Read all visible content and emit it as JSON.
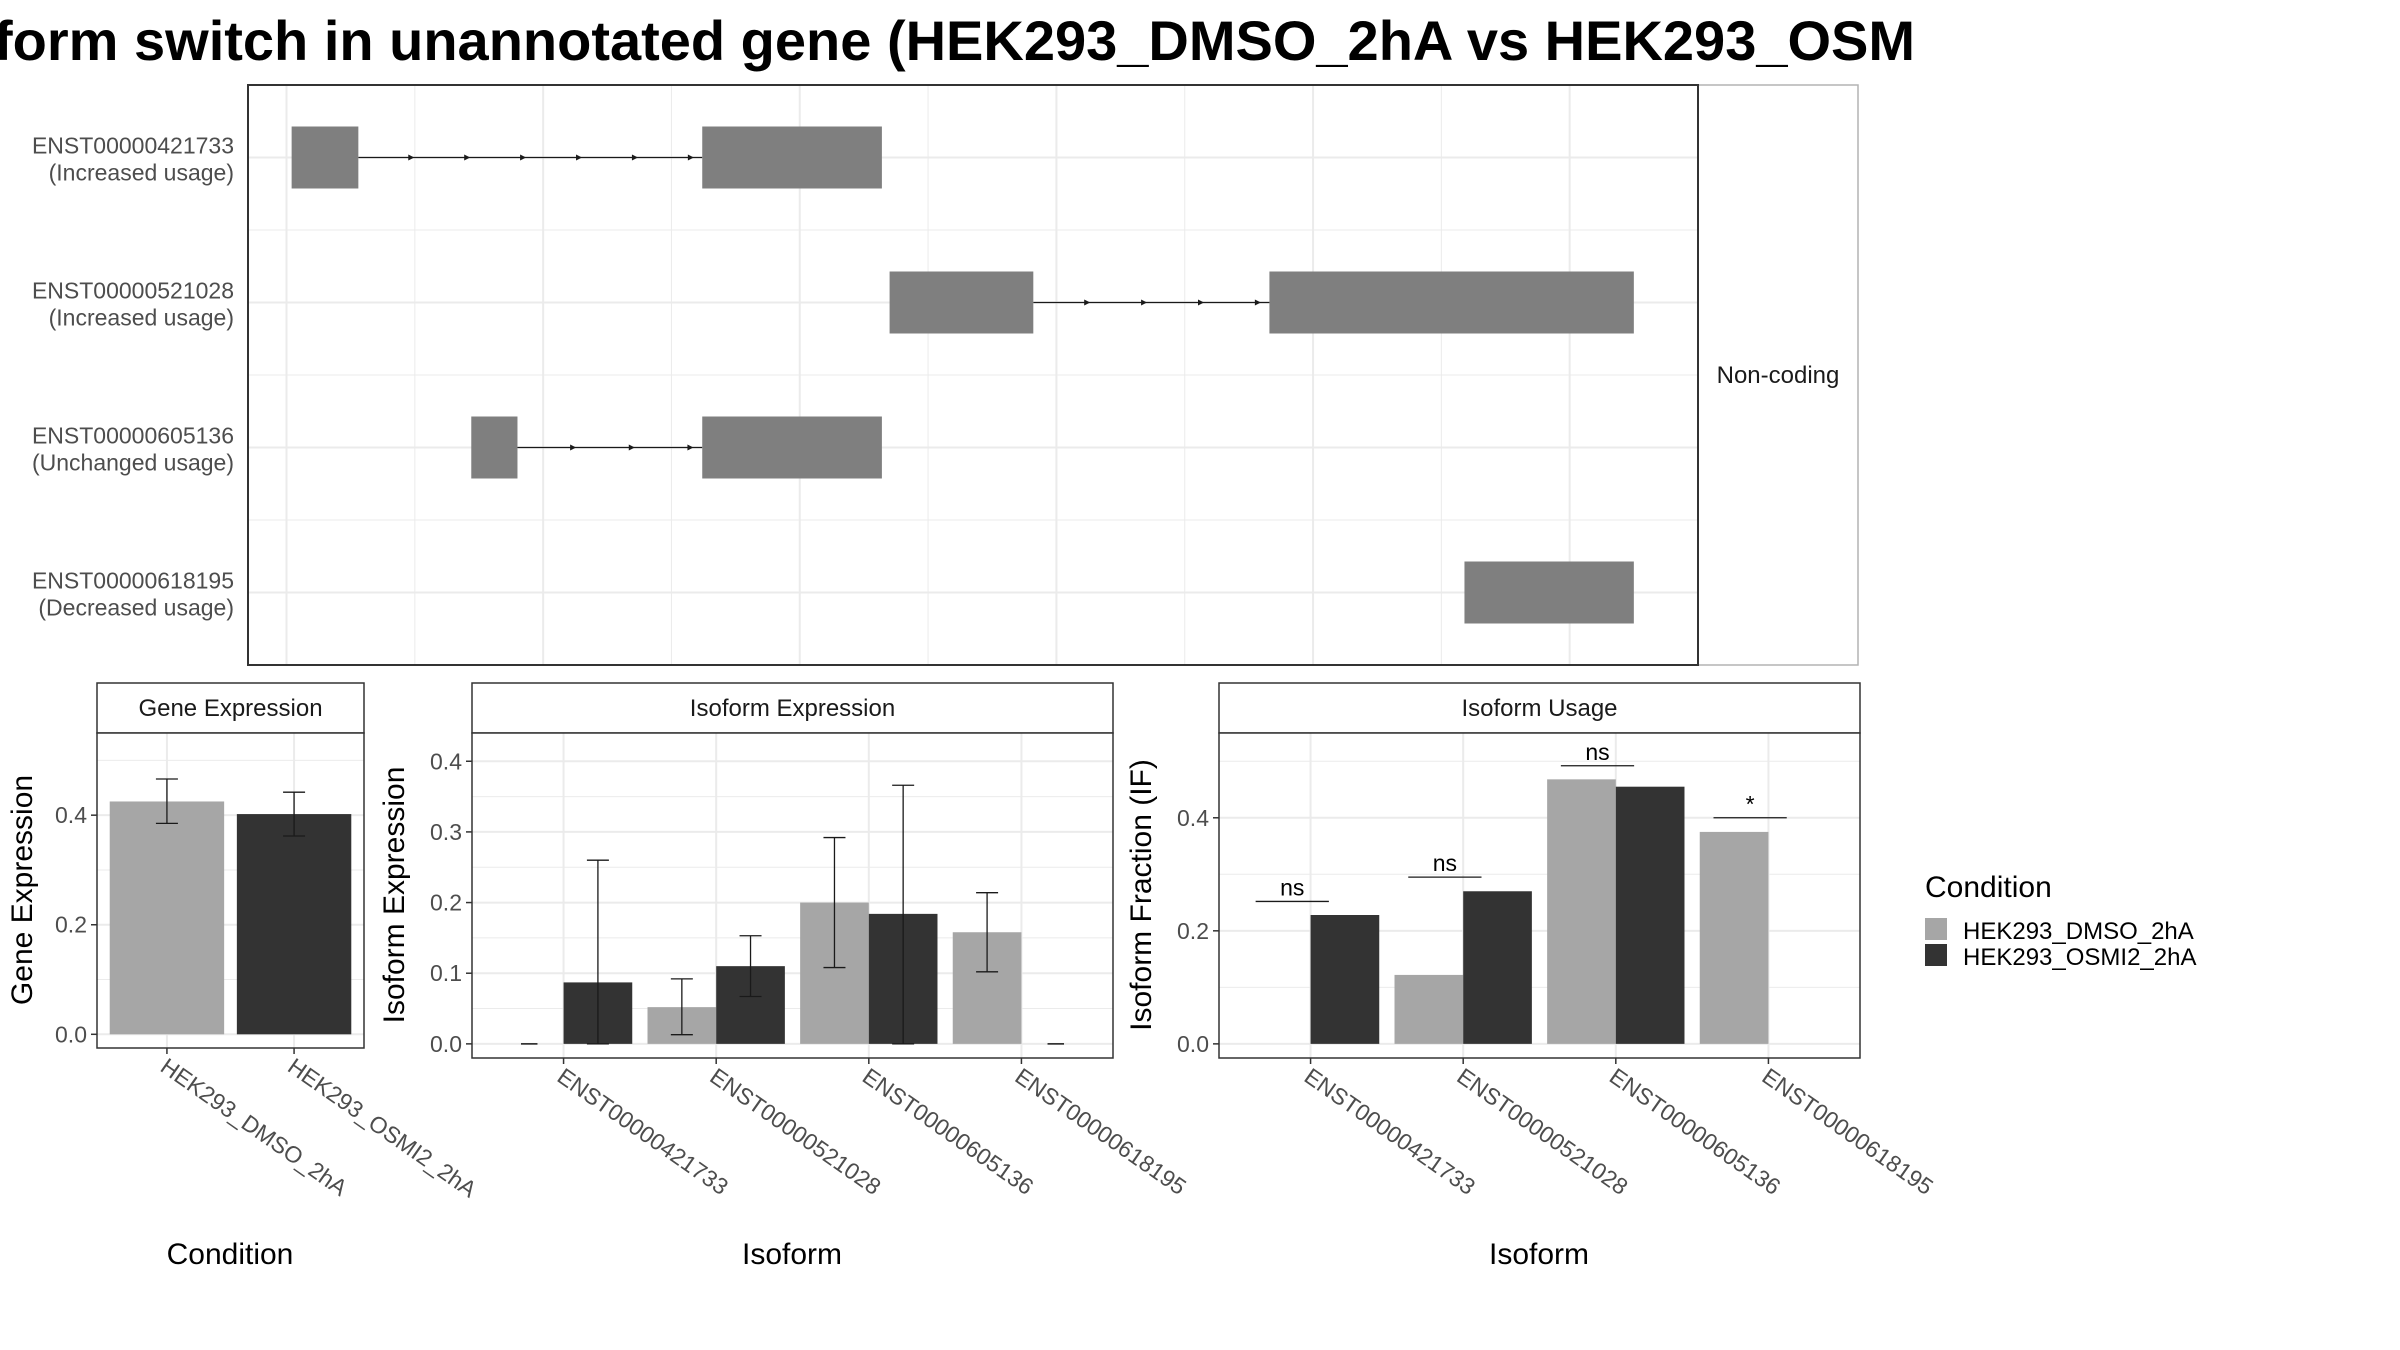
{
  "title": "form switch in unannotated gene (HEK293_DMSO_2hA vs HEK293_OSM",
  "colors": {
    "cond1": "#a6a6a6",
    "cond2": "#333333",
    "exon": "#7f7f7f",
    "grid": "#ebebeb",
    "panel_border": "#333333"
  },
  "chart_data": [
    {
      "id": "transcript_structure",
      "type": "gene_model",
      "strip_label": "Non-coding",
      "x_gridlines": [
        0,
        1,
        2,
        3,
        4,
        5
      ],
      "xlim": [
        -0.15,
        5.5
      ],
      "transcripts": [
        {
          "id": "ENST00000421733",
          "usage": "(Increased usage)",
          "exons": [
            [
              0.02,
              0.28
            ],
            [
              1.62,
              2.32
            ]
          ]
        },
        {
          "id": "ENST00000521028",
          "usage": "(Increased usage)",
          "exons": [
            [
              2.35,
              2.91
            ],
            [
              3.83,
              5.25
            ]
          ]
        },
        {
          "id": "ENST00000605136",
          "usage": "(Unchanged usage)",
          "exons": [
            [
              0.72,
              0.9
            ],
            [
              1.62,
              2.32
            ]
          ]
        },
        {
          "id": "ENST00000618195",
          "usage": "(Decreased usage)",
          "exons": [
            [
              4.59,
              5.25
            ]
          ]
        }
      ]
    },
    {
      "id": "gene_expression",
      "type": "bar",
      "strip_label": "Gene Expression",
      "xlabel": "Condition",
      "ylabel": "Gene Expression",
      "ylim": [
        -0.025,
        0.55
      ],
      "yticks": [
        0.0,
        0.2,
        0.4
      ],
      "categories": [
        "HEK293_DMSO_2hA",
        "HEK293_OSMI2_2hA"
      ],
      "values": [
        0.425,
        0.402
      ],
      "err_low": [
        0.385,
        0.362
      ],
      "err_high": [
        0.466,
        0.442
      ]
    },
    {
      "id": "isoform_expression",
      "type": "bar",
      "strip_label": "Isoform Expression",
      "xlabel": "Isoform",
      "ylabel": "Isoform Expression",
      "ylim": [
        -0.02,
        0.44
      ],
      "yticks": [
        0.0,
        0.1,
        0.2,
        0.3,
        0.4
      ],
      "categories": [
        "ENST00000421733",
        "ENST00000521028",
        "ENST00000605136",
        "ENST00000618195"
      ],
      "series": [
        {
          "name": "HEK293_DMSO_2hA",
          "values": [
            0.0,
            0.052,
            0.2,
            0.158
          ],
          "err_low": [
            0.0,
            0.013,
            0.108,
            0.102
          ],
          "err_high": [
            0.0,
            0.092,
            0.292,
            0.214
          ]
        },
        {
          "name": "HEK293_OSMI2_2hA",
          "values": [
            0.087,
            0.11,
            0.184,
            0.0
          ],
          "err_low": [
            0.0,
            0.067,
            0.0,
            0.0
          ],
          "err_high": [
            0.26,
            0.153,
            0.366,
            0.0
          ]
        }
      ]
    },
    {
      "id": "isoform_usage",
      "type": "bar",
      "strip_label": "Isoform Usage",
      "xlabel": "Isoform",
      "ylabel": "Isoform Fraction (IF)",
      "ylim": [
        -0.025,
        0.55
      ],
      "yticks": [
        0.0,
        0.2,
        0.4
      ],
      "categories": [
        "ENST00000421733",
        "ENST00000521028",
        "ENST00000605136",
        "ENST00000618195"
      ],
      "series": [
        {
          "name": "HEK293_DMSO_2hA",
          "values": [
            0.0,
            0.122,
            0.468,
            0.375
          ]
        },
        {
          "name": "HEK293_OSMI2_2hA",
          "values": [
            0.228,
            0.27,
            0.455,
            0.0
          ]
        }
      ],
      "significance": [
        {
          "label": "ns",
          "y": 0.252
        },
        {
          "label": "ns",
          "y": 0.295
        },
        {
          "label": "ns",
          "y": 0.492
        },
        {
          "label": "*",
          "y": 0.4
        }
      ]
    }
  ],
  "legend": {
    "title": "Condition",
    "items": [
      {
        "label": "HEK293_DMSO_2hA",
        "color": "#a6a6a6"
      },
      {
        "label": "HEK293_OSMI2_2hA",
        "color": "#333333"
      }
    ]
  }
}
